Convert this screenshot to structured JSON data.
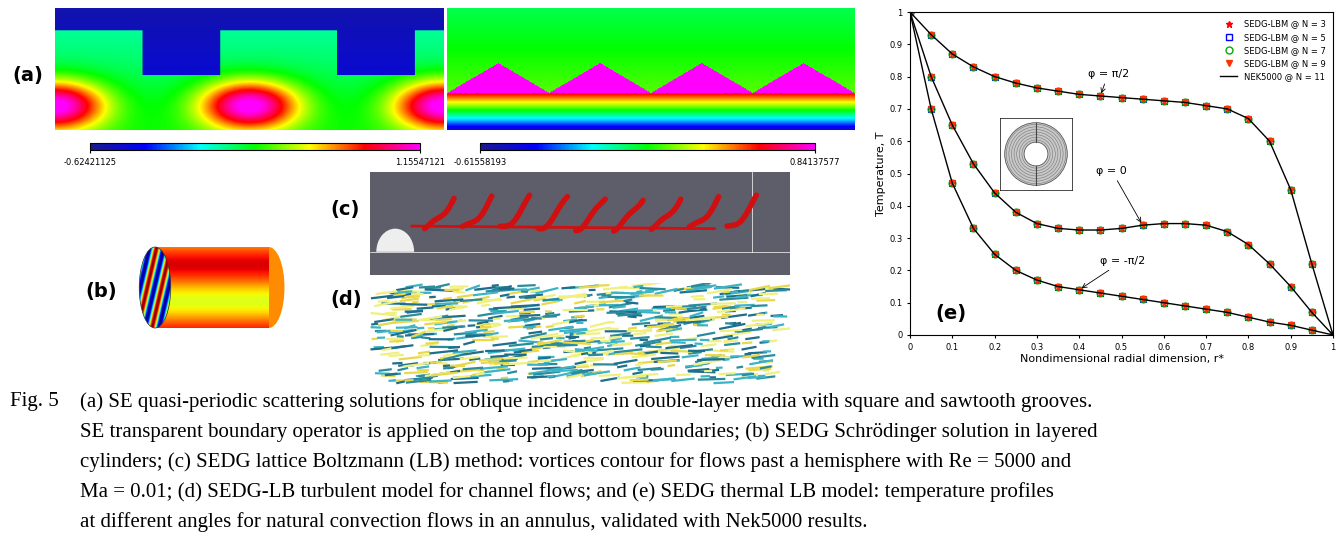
{
  "panel_labels": [
    "(a)",
    "(b)",
    "(c)",
    "(d)",
    "(e)"
  ],
  "colorbars": [
    {
      "range": [
        -0.62421125,
        1.15547121
      ],
      "ticks": [
        -0.62421125,
        1.15547121
      ]
    },
    {
      "range": [
        -0.61558193,
        0.84137577
      ],
      "ticks": [
        -0.61558193,
        0.84137577
      ]
    }
  ],
  "chart_data": {
    "type": "line",
    "xlabel": "Nondimensional radial dimension, r*",
    "ylabel": "Temperature, T",
    "x": [
      0,
      0.05,
      0.1,
      0.15,
      0.2,
      0.25,
      0.3,
      0.35,
      0.4,
      0.45,
      0.5,
      0.55,
      0.6,
      0.65,
      0.7,
      0.75,
      0.8,
      0.85,
      0.9,
      0.95,
      1
    ],
    "xlim": [
      0,
      1
    ],
    "ylim": [
      0,
      1
    ],
    "xticks": [
      0,
      0.1,
      0.2,
      0.3,
      0.4,
      0.5,
      0.6,
      0.7,
      0.8,
      0.9,
      1
    ],
    "yticks": [
      0,
      0.1,
      0.2,
      0.3,
      0.4,
      0.5,
      0.6,
      0.7,
      0.8,
      0.9,
      1
    ],
    "legend": "upper right",
    "curves": [
      {
        "name": "φ = π/2",
        "values": [
          1,
          0.93,
          0.87,
          0.83,
          0.8,
          0.78,
          0.765,
          0.755,
          0.745,
          0.74,
          0.735,
          0.73,
          0.725,
          0.72,
          0.71,
          0.7,
          0.67,
          0.6,
          0.45,
          0.22,
          0
        ]
      },
      {
        "name": "φ = 0",
        "values": [
          1,
          0.8,
          0.65,
          0.53,
          0.44,
          0.38,
          0.345,
          0.33,
          0.325,
          0.325,
          0.33,
          0.34,
          0.345,
          0.345,
          0.34,
          0.32,
          0.28,
          0.22,
          0.15,
          0.07,
          0
        ]
      },
      {
        "name": "φ = -π/2",
        "values": [
          1,
          0.7,
          0.47,
          0.33,
          0.25,
          0.2,
          0.17,
          0.15,
          0.14,
          0.13,
          0.12,
          0.11,
          0.1,
          0.09,
          0.08,
          0.07,
          0.055,
          0.04,
          0.03,
          0.015,
          0
        ]
      }
    ],
    "series": [
      {
        "name": "SEDG-LBM @ N = 3",
        "color": "#ff0000",
        "marker": "star"
      },
      {
        "name": "SEDG-LBM @ N = 5",
        "color": "#0000ff",
        "marker": "square"
      },
      {
        "name": "SEDG-LBM @ N = 7",
        "color": "#00b000",
        "marker": "circle"
      },
      {
        "name": "SEDG-LBM @ N = 9",
        "color": "#ff3300",
        "marker": "triangle_down"
      },
      {
        "name": "NEK5000 @ N = 11",
        "color": "#000000",
        "line_style": "solid"
      }
    ]
  },
  "caption": {
    "label": "Fig. 5",
    "lines": [
      "(a) SE quasi-periodic scattering solutions for oblique incidence in double-layer media with square and sawtooth grooves.",
      "SE transparent boundary operator is applied on the top and bottom boundaries; (b) SEDG Schrödinger solution in layered",
      "cylinders; (c) SEDG lattice Boltzmann (LB) method: vortices contour for flows past a hemisphere with Re = 5000 and",
      "Ma = 0.01; (d) SEDG-LB turbulent model for channel flows; and (e) SEDG thermal LB model: temperature profiles",
      "at different angles for natural convection flows in an annulus, validated with Nek5000 results."
    ]
  }
}
